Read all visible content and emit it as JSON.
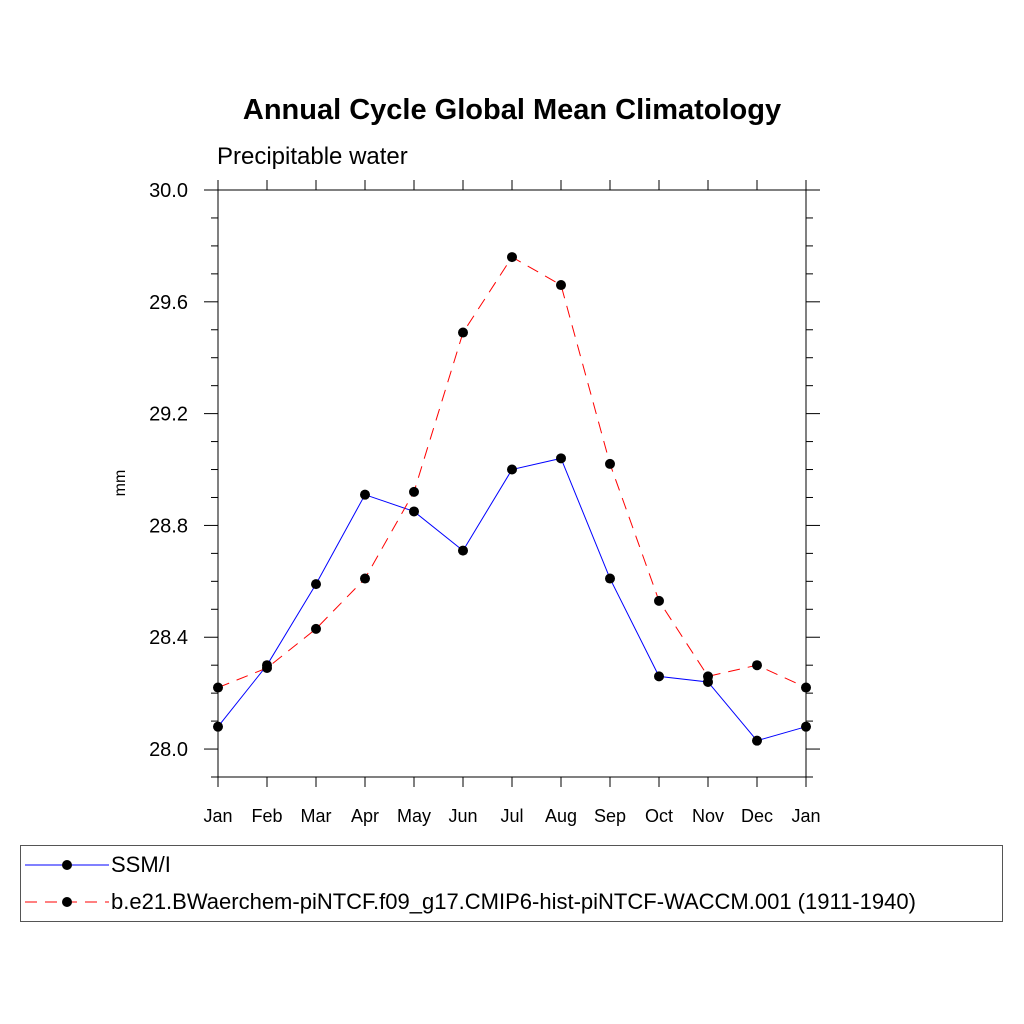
{
  "chart_data": {
    "type": "line",
    "title": "Annual Cycle Global Mean Climatology",
    "subtitle": "Precipitable water",
    "ylabel": "mm",
    "xlabel": "",
    "categories": [
      "Jan",
      "Feb",
      "Mar",
      "Apr",
      "May",
      "Jun",
      "Jul",
      "Aug",
      "Sep",
      "Oct",
      "Nov",
      "Dec",
      "Jan"
    ],
    "ylim": [
      27.9,
      30.0
    ],
    "yticks": [
      "28.0",
      "28.4",
      "28.8",
      "29.2",
      "29.6",
      "30.0"
    ],
    "grid": false,
    "legend_position": "bottom",
    "series": [
      {
        "name": "SSM/I",
        "color": "#0000ff",
        "line_style": "solid",
        "marker": "filled-circle",
        "values": [
          28.08,
          28.3,
          28.59,
          28.91,
          28.85,
          28.71,
          29.0,
          29.04,
          28.61,
          28.26,
          28.24,
          28.03,
          28.08
        ]
      },
      {
        "name": "b.e21.BWaerchem-piNTCF.f09_g17.CMIP6-hist-piNTCF-WACCM.001 (1911-1940)",
        "color": "#ff0000",
        "line_style": "dashed",
        "marker": "filled-circle",
        "values": [
          28.22,
          28.29,
          28.43,
          28.61,
          28.92,
          29.49,
          29.76,
          29.66,
          29.02,
          28.53,
          28.26,
          28.3,
          28.22
        ]
      }
    ]
  }
}
